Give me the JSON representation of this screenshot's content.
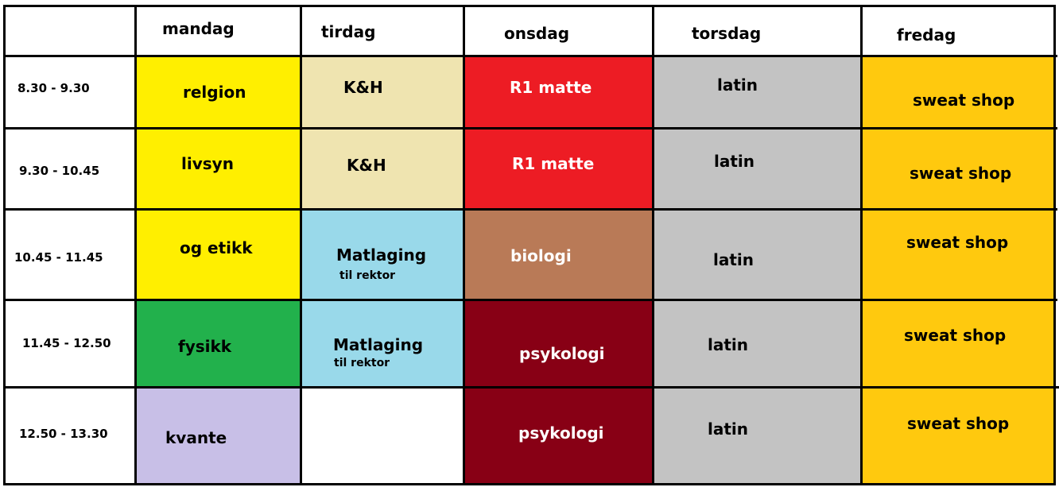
{
  "days": [
    "mandag",
    "tirdag",
    "onsdag",
    "torsdag",
    "fredag"
  ],
  "times": [
    "8.30 - 9.30",
    "9.30 - 10.45",
    "10.45 - 11.45",
    "11.45 - 12.50",
    "12.50 - 13.30"
  ],
  "colors": {
    "yellow": "#ffef00",
    "beige": "#efe4b0",
    "red": "#ed1c24",
    "gray": "#c3c3c3",
    "gold": "#ffc90e",
    "lightblue": "#99d9ea",
    "brown": "#b97a57",
    "darkred": "#880015",
    "green": "#22b14c",
    "lavender": "#c8bfe7",
    "white": "#ffffff"
  },
  "cells": {
    "mandag": [
      "relgion",
      "livsyn",
      "og etikk",
      "fysikk",
      "kvante"
    ],
    "tirdag": [
      "K&H",
      "K&H",
      "Matlaging",
      "Matlaging",
      ""
    ],
    "tirdag_sub": [
      "",
      "",
      "til rektor",
      "til rektor",
      ""
    ],
    "onsdag": [
      "R1 matte",
      "R1 matte",
      "biologi",
      "psykologi",
      "psykologi"
    ],
    "torsdag": [
      "latin",
      "latin",
      "latin",
      "latin",
      "latin"
    ],
    "fredag": [
      "sweat shop",
      "sweat shop",
      "sweat shop",
      "sweat shop",
      "sweat shop"
    ]
  }
}
